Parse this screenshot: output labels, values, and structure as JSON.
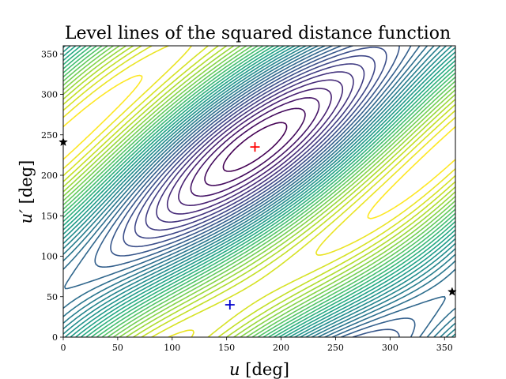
{
  "chart_data": {
    "type": "contour",
    "title": "Level lines of the squared distance function",
    "xlabel": {
      "symbol": "u",
      "unit": "[deg]"
    },
    "ylabel": {
      "symbol": "u′",
      "unit": "[deg]"
    },
    "xlim": [
      0,
      360
    ],
    "ylim": [
      0,
      360
    ],
    "xticks": [
      0,
      50,
      100,
      150,
      200,
      250,
      300,
      350
    ],
    "yticks": [
      0,
      50,
      100,
      150,
      200,
      250,
      300,
      350
    ],
    "colormap": "viridis",
    "levels": 34,
    "grid": false,
    "maximum": {
      "u": 176,
      "u_prime": 235
    },
    "markers": [
      {
        "name": "maximum",
        "marker": "+",
        "u": 176,
        "u_prime": 235,
        "color": "#ff0000"
      },
      {
        "name": "minimum",
        "marker": "+",
        "u": 153,
        "u_prime": 40,
        "color": "#0000cc"
      },
      {
        "name": "star-left",
        "marker": "star",
        "u": 0,
        "u_prime": 241,
        "color": "#000000"
      },
      {
        "name": "star-right",
        "marker": "star",
        "u": 357,
        "u_prime": 56,
        "color": "#000000"
      }
    ]
  }
}
